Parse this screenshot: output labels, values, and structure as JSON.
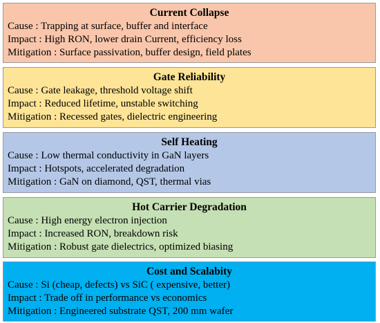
{
  "panels": [
    {
      "title": "Current Collapse",
      "color": "#f9c6ab",
      "lines": [
        "Cause : Trapping at surface, buffer and interface",
        "Impact : High RON, lower drain Current, efficiency loss",
        "Mitigation : Surface passivation, buffer design, field plates"
      ]
    },
    {
      "title": "Gate Reliability",
      "color": "#fde497",
      "lines": [
        "Cause : Gate leakage, threshold voltage shift",
        "Impact : Reduced lifetime, unstable switching",
        "Mitigation : Recessed gates, dielectric engineering"
      ]
    },
    {
      "title": "Self Heating",
      "color": "#b4c7e7",
      "lines": [
        "Cause : Low thermal conductivity in GaN layers",
        "Impact : Hotspots, accelerated degradation",
        "Mitigation : GaN on diamond, QST, thermal vias"
      ]
    },
    {
      "title": "Hot Carrier Degradation",
      "color": "#c5e0b4",
      "lines": [
        "Cause : High energy electron injection",
        "Impact : Increased RON, breakdown risk",
        "Mitigation : Robust gate dielectrics, optimized biasing"
      ]
    },
    {
      "title": "Cost and Scalabity",
      "color": "#00b0f0",
      "lines": [
        "Cause : Si (cheap, defects) vs SiC ( expensive, better)",
        "Impact : Trade off in performance vs economics",
        "Mitigation : Engineered substrate QST, 200 mm wafer"
      ]
    }
  ]
}
